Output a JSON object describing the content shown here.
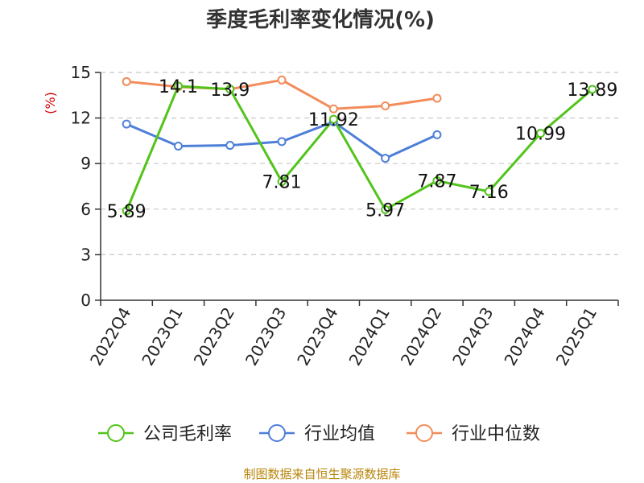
{
  "chart_data": {
    "type": "line",
    "title": "季度毛利率变化情况(%)",
    "unit_label": "(%)",
    "categories": [
      "2022Q4",
      "2023Q1",
      "2023Q2",
      "2023Q3",
      "2023Q4",
      "2024Q1",
      "2024Q2",
      "2024Q3",
      "2024Q4",
      "2025Q1"
    ],
    "ylim": [
      0,
      15
    ],
    "yticks": [
      0,
      3,
      6,
      9,
      12,
      15
    ],
    "grid": true,
    "legend_position": "bottom",
    "series": [
      {
        "name": "公司毛利率",
        "color": "#52c41a",
        "values": [
          5.89,
          14.1,
          13.9,
          7.81,
          11.92,
          5.97,
          7.87,
          7.16,
          10.99,
          13.89
        ],
        "labels": [
          "5.89",
          "14.1",
          "13.9",
          "7.81",
          "11.92",
          "5.97",
          "7.87",
          "7.16",
          "10.99",
          "13.89"
        ]
      },
      {
        "name": "行业均值",
        "color": "#4e7fd8",
        "values": [
          11.6,
          10.15,
          10.2,
          10.45,
          11.75,
          9.35,
          10.9,
          null,
          null,
          null
        ]
      },
      {
        "name": "行业中位数",
        "color": "#f28c5a",
        "values": [
          14.4,
          14.05,
          13.9,
          14.5,
          12.6,
          12.8,
          13.3,
          null,
          null,
          null
        ]
      }
    ]
  },
  "footer": {
    "source": "制图数据来自恒生聚源数据库"
  }
}
